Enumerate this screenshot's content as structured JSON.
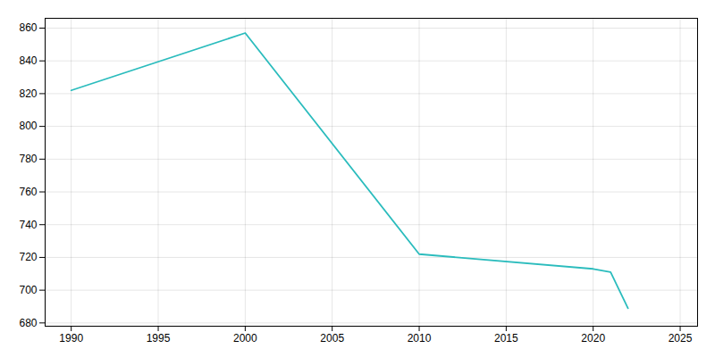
{
  "chart_data": {
    "type": "line",
    "x": [
      1990,
      2000,
      2010,
      2020,
      2021,
      2022
    ],
    "values": [
      822,
      857,
      722,
      713,
      711,
      689
    ],
    "color": "#2bbcbd",
    "xlim": [
      1988.5,
      2026
    ],
    "ylim": [
      678,
      866
    ],
    "xticks": [
      1990,
      1995,
      2000,
      2005,
      2010,
      2015,
      2020,
      2025
    ],
    "yticks": [
      680,
      700,
      720,
      740,
      760,
      780,
      800,
      820,
      840,
      860
    ],
    "grid": true
  }
}
